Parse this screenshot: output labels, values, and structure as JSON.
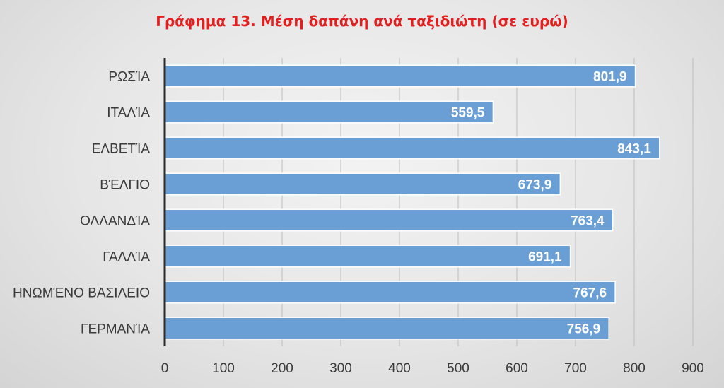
{
  "chart_data": {
    "type": "bar",
    "orientation": "horizontal",
    "title": "Γράφημα 13. Μέση δαπάνη ανά ταξιδιώτη (σε ευρώ)",
    "categories": [
      "ΡΩΣΊΑ",
      "ΙΤΑΛΊΑ",
      "ΕΛΒΕΤΊΑ",
      "ΒΈΛΓΙΟ",
      "ΟΛΛΑΝΔΊΑ",
      "ΓΑΛΛΊΑ",
      "ΗΝΩΜΈΝΟ ΒΑΣΙΛΕΙΟ",
      "ΓΕΡΜΑΝΊΑ"
    ],
    "values": [
      801.9,
      559.5,
      843.1,
      673.9,
      763.4,
      691.1,
      767.6,
      756.9
    ],
    "value_labels": [
      "801,9",
      "559,5",
      "843,1",
      "673,9",
      "763,4",
      "691,1",
      "767,6",
      "756,9"
    ],
    "xlim": [
      0,
      900
    ],
    "ticks": [
      "0",
      "100",
      "200",
      "300",
      "400",
      "500",
      "600",
      "700",
      "800",
      "900"
    ],
    "grid": true,
    "colors": {
      "bar": "#6a9fd6",
      "bar_edge": "#ffffff",
      "grid": "#bdbdbd",
      "axis": "#2b2b2b",
      "title": "#e31e1e"
    }
  }
}
